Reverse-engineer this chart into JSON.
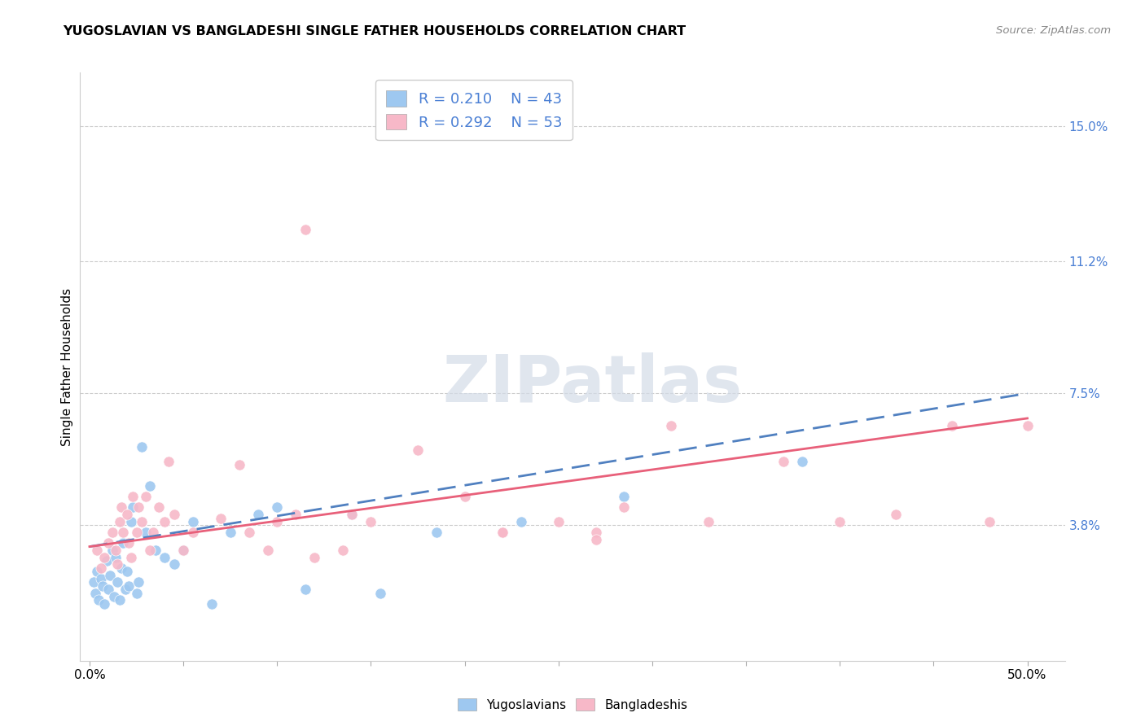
{
  "title": "YUGOSLAVIAN VS BANGLADESHI SINGLE FATHER HOUSEHOLDS CORRELATION CHART",
  "source": "Source: ZipAtlas.com",
  "ylabel": "Single Father Households",
  "xlabel_ticks": [
    "0.0%",
    "",
    "",
    "",
    "",
    "",
    "",
    "",
    "",
    "50.0%"
  ],
  "xlabel_vals": [
    0.0,
    5.0,
    10.0,
    15.0,
    20.0,
    25.0,
    30.0,
    35.0,
    40.0,
    50.0
  ],
  "ylabel_ticks": [
    "3.8%",
    "7.5%",
    "11.2%",
    "15.0%"
  ],
  "ylabel_vals": [
    3.8,
    7.5,
    11.2,
    15.0
  ],
  "ymin": 0.0,
  "ymax": 16.5,
  "xmin": -0.5,
  "xmax": 52.0,
  "yugoslavian_R": "0.210",
  "yugoslavian_N": "43",
  "bangladeshi_R": "0.292",
  "bangladeshi_N": "53",
  "yugoslavian_color": "#9ec8f0",
  "bangladeshi_color": "#f7b8c8",
  "trendline_yugo_color": "#5080c0",
  "trendline_bang_color": "#e8607a",
  "legend_text_color": "#4a7fd4",
  "watermark_color": "#d4dce8",
  "yugo_x": [
    0.2,
    0.3,
    0.4,
    0.5,
    0.6,
    0.7,
    0.8,
    0.9,
    1.0,
    1.1,
    1.2,
    1.3,
    1.4,
    1.5,
    1.6,
    1.7,
    1.8,
    1.9,
    2.0,
    2.1,
    2.2,
    2.3,
    2.5,
    2.6,
    2.8,
    3.0,
    3.2,
    3.5,
    4.0,
    4.5,
    5.0,
    5.5,
    6.5,
    7.5,
    9.0,
    10.0,
    11.5,
    14.0,
    15.5,
    18.5,
    23.0,
    28.5,
    38.0
  ],
  "yugo_y": [
    2.2,
    1.9,
    2.5,
    1.7,
    2.3,
    2.1,
    1.6,
    2.8,
    2.0,
    2.4,
    3.1,
    1.8,
    2.9,
    2.2,
    1.7,
    2.6,
    3.3,
    2.0,
    2.5,
    2.1,
    3.9,
    4.3,
    1.9,
    2.2,
    6.0,
    3.6,
    4.9,
    3.1,
    2.9,
    2.7,
    3.1,
    3.9,
    1.6,
    3.6,
    4.1,
    4.3,
    2.0,
    4.1,
    1.9,
    3.6,
    3.9,
    4.6,
    5.6
  ],
  "bang_x": [
    0.4,
    0.6,
    0.8,
    1.0,
    1.2,
    1.4,
    1.5,
    1.6,
    1.7,
    1.8,
    2.0,
    2.1,
    2.2,
    2.3,
    2.5,
    2.6,
    2.8,
    3.0,
    3.2,
    3.4,
    3.7,
    4.0,
    4.2,
    4.5,
    5.0,
    5.5,
    7.0,
    8.0,
    8.5,
    9.5,
    10.0,
    11.0,
    12.0,
    13.5,
    14.0,
    15.0,
    17.5,
    20.0,
    22.0,
    25.0,
    27.0,
    28.5,
    11.5,
    31.0,
    33.0,
    37.0,
    40.0,
    43.0,
    46.0,
    48.0,
    50.0,
    22.0,
    27.0
  ],
  "bang_y": [
    3.1,
    2.6,
    2.9,
    3.3,
    3.6,
    3.1,
    2.7,
    3.9,
    4.3,
    3.6,
    4.1,
    3.3,
    2.9,
    4.6,
    3.6,
    4.3,
    3.9,
    4.6,
    3.1,
    3.6,
    4.3,
    3.9,
    5.6,
    4.1,
    3.1,
    3.6,
    4.0,
    5.5,
    3.6,
    3.1,
    3.9,
    4.1,
    2.9,
    3.1,
    4.1,
    3.9,
    5.9,
    4.6,
    3.6,
    3.9,
    3.6,
    4.3,
    12.1,
    6.6,
    3.9,
    5.6,
    3.9,
    4.1,
    6.6,
    3.9,
    6.6,
    3.6,
    3.4
  ]
}
